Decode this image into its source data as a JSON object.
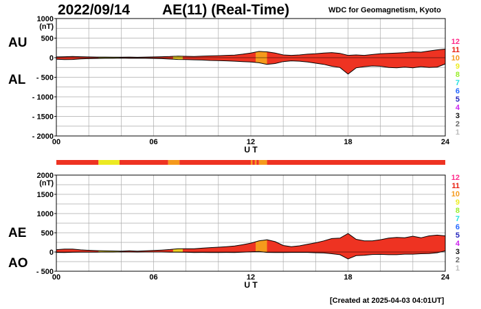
{
  "header": {
    "date": "2022/09/14",
    "title": "AE(11) (Real-Time)",
    "org": "WDC for Geomagnetism, Kyoto"
  },
  "footer": {
    "created": "[Created at 2025-04-03 04:01UT]"
  },
  "colors": {
    "fill_main": "#ee3322",
    "fill_orange": "#f59a1c",
    "fill_yellow": "#ecea22",
    "grid": "#aaaaaa",
    "frame": "#000000"
  },
  "level_legend": [
    {
      "label": "12",
      "color": "#ff2a8a"
    },
    {
      "label": "11",
      "color": "#e81e0e"
    },
    {
      "label": "10",
      "color": "#f59a1c"
    },
    {
      "label": "9",
      "color": "#eded22"
    },
    {
      "label": "8",
      "color": "#98ee2a"
    },
    {
      "label": "7",
      "color": "#22e0e0"
    },
    {
      "label": "6",
      "color": "#2266ff"
    },
    {
      "label": "5",
      "color": "#2222bb"
    },
    {
      "label": "4",
      "color": "#cc22ee"
    },
    {
      "label": "3",
      "color": "#111111"
    },
    {
      "label": "2",
      "color": "#666666"
    },
    {
      "label": "1",
      "color": "#bbbbbb"
    }
  ],
  "chart_data": [
    {
      "type": "area",
      "panel": "AU/AL",
      "upper_label": "AU",
      "lower_label": "AL",
      "ylabel": "(nT)",
      "xlabel": "U T",
      "xlim": [
        0,
        24
      ],
      "ylim": [
        -2000,
        1000
      ],
      "yticks": [
        1000,
        500,
        0,
        -500,
        -1000,
        -1500,
        -2000
      ],
      "ytick_labels": [
        "1000",
        "500",
        "0",
        "- 500",
        "- 1000",
        "- 1500",
        "- 2000"
      ],
      "xtick_labels": [
        "00",
        "06",
        "12",
        "18",
        "24"
      ],
      "grid": true,
      "x": [
        0,
        0.5,
        1,
        1.5,
        2,
        2.5,
        3,
        3.5,
        4,
        4.5,
        5,
        5.5,
        6,
        6.5,
        7,
        7.5,
        8,
        8.5,
        9,
        9.5,
        10,
        10.5,
        11,
        11.5,
        12,
        12.5,
        13,
        13.5,
        14,
        14.5,
        15,
        15.5,
        16,
        16.5,
        17,
        17.5,
        18,
        18.5,
        19,
        19.5,
        20,
        20.5,
        21,
        21.5,
        22,
        22.5,
        23,
        23.5,
        24
      ],
      "series": [
        {
          "name": "AU",
          "values": [
            20,
            25,
            30,
            25,
            20,
            15,
            15,
            12,
            12,
            15,
            10,
            15,
            20,
            25,
            30,
            40,
            35,
            30,
            40,
            45,
            50,
            60,
            65,
            90,
            120,
            160,
            150,
            120,
            70,
            60,
            70,
            90,
            100,
            120,
            130,
            110,
            60,
            70,
            60,
            80,
            100,
            110,
            120,
            130,
            150,
            140,
            170,
            200,
            220
          ]
        },
        {
          "name": "AL",
          "values": [
            -40,
            -50,
            -45,
            -30,
            -25,
            -20,
            -15,
            -15,
            -10,
            -15,
            -12,
            -15,
            -20,
            -25,
            -35,
            -45,
            -50,
            -55,
            -60,
            -70,
            -75,
            -80,
            -90,
            -100,
            -110,
            -130,
            -170,
            -150,
            -100,
            -80,
            -90,
            -110,
            -140,
            -170,
            -220,
            -250,
            -420,
            -260,
            -230,
            -210,
            -220,
            -250,
            -260,
            -240,
            -260,
            -230,
            -250,
            -240,
            -160
          ]
        }
      ]
    },
    {
      "type": "area",
      "panel": "AE/AO",
      "upper_label": "AE",
      "lower_label": "AO",
      "ylabel": "(nT)",
      "xlabel": "U T",
      "xlim": [
        0,
        24
      ],
      "ylim": [
        -500,
        2000
      ],
      "yticks": [
        2000,
        1500,
        1000,
        500,
        0,
        -500
      ],
      "ytick_labels": [
        "2000",
        "1500",
        "1000",
        "500",
        "0",
        "- 500"
      ],
      "xtick_labels": [
        "00",
        "06",
        "12",
        "18",
        "24"
      ],
      "grid": true,
      "x": [
        0,
        0.5,
        1,
        1.5,
        2,
        2.5,
        3,
        3.5,
        4,
        4.5,
        5,
        5.5,
        6,
        6.5,
        7,
        7.5,
        8,
        8.5,
        9,
        9.5,
        10,
        10.5,
        11,
        11.5,
        12,
        12.5,
        13,
        13.5,
        14,
        14.5,
        15,
        15.5,
        16,
        16.5,
        17,
        17.5,
        18,
        18.5,
        19,
        19.5,
        20,
        20.5,
        21,
        21.5,
        22,
        22.5,
        23,
        23.5,
        24
      ],
      "series": [
        {
          "name": "AE",
          "values": [
            60,
            75,
            75,
            55,
            45,
            35,
            30,
            27,
            22,
            30,
            22,
            30,
            40,
            50,
            65,
            85,
            85,
            85,
            100,
            115,
            125,
            140,
            155,
            190,
            230,
            290,
            320,
            270,
            170,
            140,
            160,
            200,
            240,
            290,
            350,
            360,
            480,
            330,
            290,
            290,
            320,
            360,
            380,
            370,
            410,
            370,
            420,
            440,
            420
          ]
        },
        {
          "name": "AO",
          "values": [
            -10,
            -12,
            -8,
            -3,
            -3,
            -3,
            0,
            -2,
            1,
            0,
            -1,
            0,
            0,
            0,
            -3,
            -3,
            -8,
            -12,
            -10,
            -12,
            -12,
            -10,
            -12,
            -5,
            5,
            15,
            -10,
            -15,
            -15,
            -10,
            -10,
            -10,
            -20,
            -25,
            -45,
            -70,
            -180,
            -95,
            -85,
            -65,
            -60,
            -70,
            -70,
            -55,
            -55,
            -45,
            -40,
            -20,
            30
          ]
        }
      ],
      "activity_bar": [
        {
          "from": 0,
          "to": 2.6,
          "level": "main"
        },
        {
          "from": 2.6,
          "to": 3.9,
          "level": "yellow"
        },
        {
          "from": 3.9,
          "to": 6.9,
          "level": "main"
        },
        {
          "from": 6.9,
          "to": 7.6,
          "level": "orange"
        },
        {
          "from": 7.6,
          "to": 12.0,
          "level": "main"
        },
        {
          "from": 12.0,
          "to": 12.1,
          "level": "orange"
        },
        {
          "from": 12.1,
          "to": 12.25,
          "level": "main"
        },
        {
          "from": 12.25,
          "to": 12.35,
          "level": "orange"
        },
        {
          "from": 12.35,
          "to": 12.5,
          "level": "main"
        },
        {
          "from": 12.5,
          "to": 13.0,
          "level": "orange"
        },
        {
          "from": 13.0,
          "to": 24,
          "level": "main"
        }
      ],
      "orange_spans": [
        [
          12.3,
          13.0
        ]
      ],
      "yellow_spans": [
        [
          2.6,
          3.9
        ],
        [
          7.2,
          7.8
        ]
      ]
    }
  ]
}
